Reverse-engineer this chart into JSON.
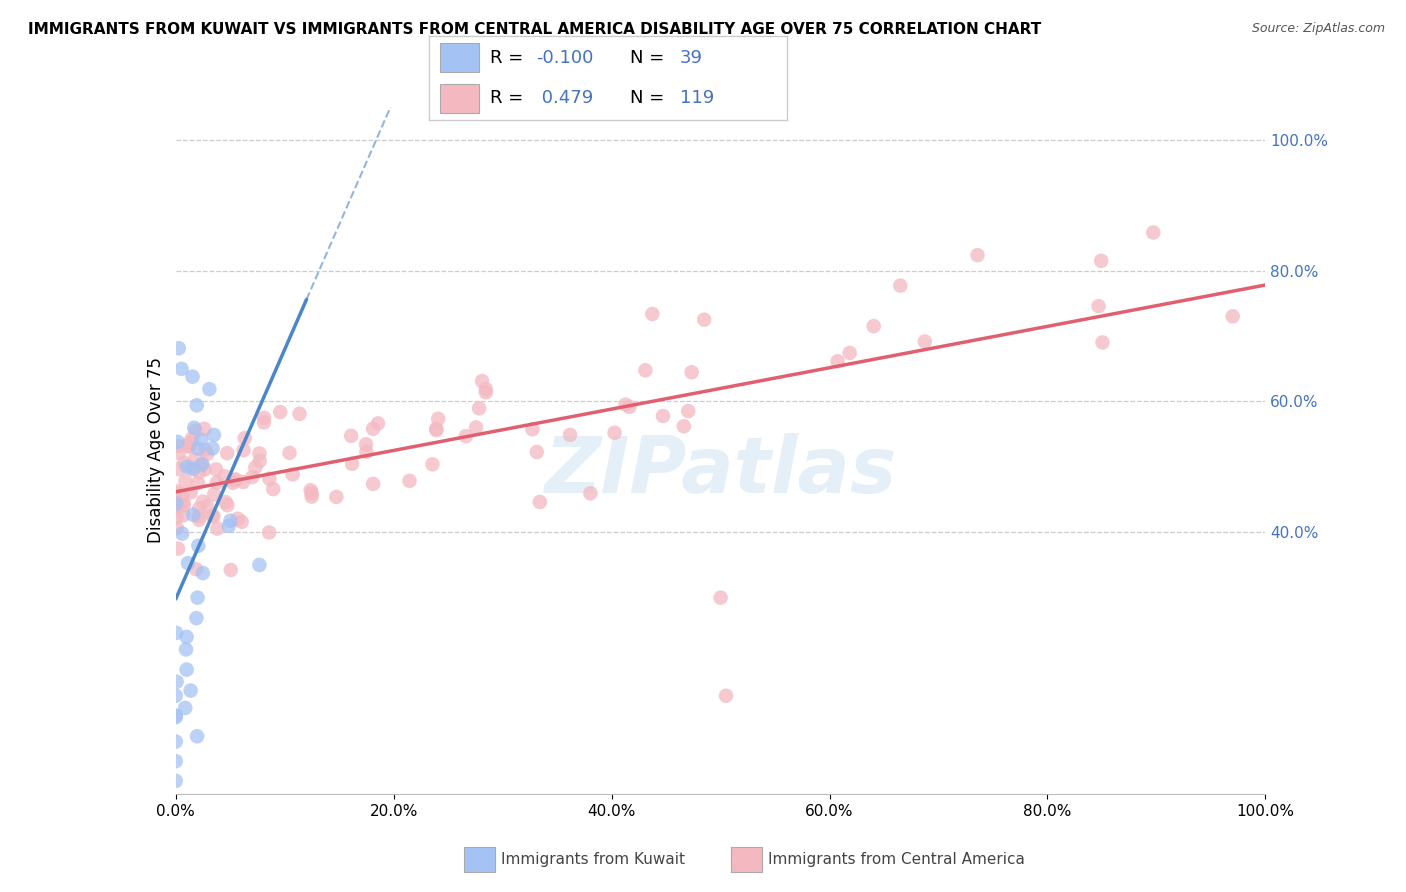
{
  "title": "IMMIGRANTS FROM KUWAIT VS IMMIGRANTS FROM CENTRAL AMERICA DISABILITY AGE OVER 75 CORRELATION CHART",
  "source": "Source: ZipAtlas.com",
  "ylabel": "Disability Age Over 75",
  "kuwait_R": -0.1,
  "kuwait_N": 39,
  "central_america_R": 0.479,
  "central_america_N": 119,
  "kuwait_color": "#a4c2f4",
  "central_america_color": "#f4b8c1",
  "kuwait_line_color": "#4a86c8",
  "central_america_line_color": "#e06070",
  "watermark": "ZIPatlas",
  "background_color": "#ffffff",
  "xlim": [
    0.0,
    1.0
  ],
  "ylim": [
    0.0,
    1.05
  ],
  "xticks": [
    0.0,
    0.2,
    0.4,
    0.6,
    0.8,
    1.0
  ],
  "yticks_right": [
    0.4,
    0.6,
    0.8,
    1.0
  ],
  "grid_lines": [
    0.4,
    0.6,
    0.8,
    1.0
  ],
  "title_fontsize": 11,
  "axis_fontsize": 11,
  "legend_fontsize": 13
}
